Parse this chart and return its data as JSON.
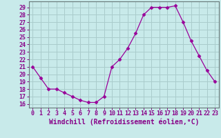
{
  "x": [
    0,
    1,
    2,
    3,
    4,
    5,
    6,
    7,
    8,
    9,
    10,
    11,
    12,
    13,
    14,
    15,
    16,
    17,
    18,
    19,
    20,
    21,
    22,
    23
  ],
  "y": [
    21.0,
    19.5,
    18.0,
    18.0,
    17.5,
    17.0,
    16.5,
    16.2,
    16.2,
    17.0,
    21.0,
    22.0,
    23.5,
    25.5,
    28.0,
    29.0,
    29.0,
    29.0,
    29.2,
    27.0,
    24.5,
    22.5,
    20.5,
    19.0
  ],
  "line_color": "#990099",
  "bg_color": "#c8eaea",
  "grid_color": "#aacccc",
  "xlabel": "Windchill (Refroidissement éolien,°C)",
  "ylabel_ticks": [
    16,
    17,
    18,
    19,
    20,
    21,
    22,
    23,
    24,
    25,
    26,
    27,
    28,
    29
  ],
  "ylim": [
    15.5,
    29.8
  ],
  "xlim": [
    -0.5,
    23.5
  ],
  "marker": "D",
  "marker_size": 2.5,
  "tick_label_color": "#880088",
  "axis_label_color": "#880088",
  "font_size": 6.0,
  "label_font_size": 7.0
}
